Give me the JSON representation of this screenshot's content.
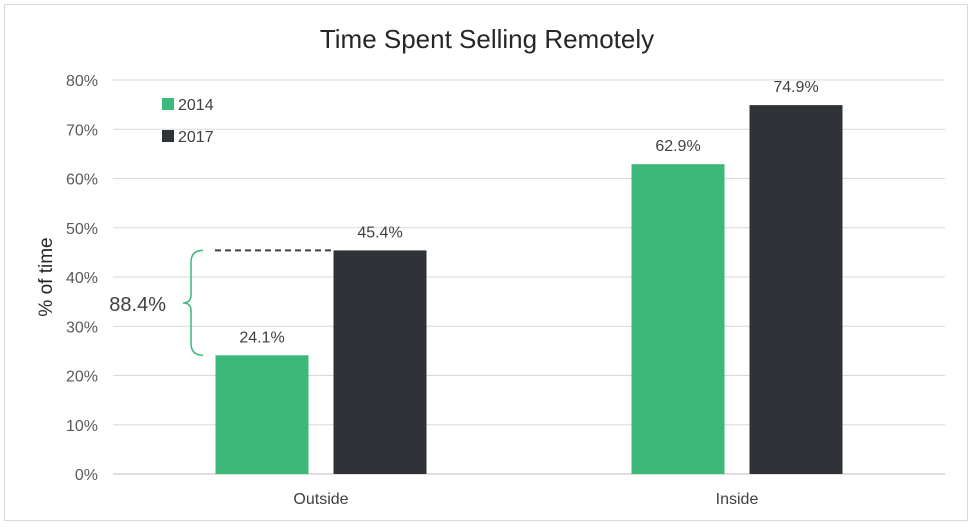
{
  "chart_data": {
    "type": "bar",
    "title": "Time Spent Selling Remotely",
    "xlabel": "",
    "ylabel": "% of time",
    "categories": [
      "Outside",
      "Inside"
    ],
    "series": [
      {
        "name": "2014",
        "values": [
          24.1,
          62.9
        ],
        "labels": [
          "24.1%",
          "62.9%"
        ],
        "color": "#3cb878"
      },
      {
        "name": "2017",
        "values": [
          45.4,
          74.9
        ],
        "labels": [
          "45.4%",
          "74.9%"
        ],
        "color": "#2f3338"
      }
    ],
    "ylim": [
      0,
      80
    ],
    "yticks": [
      0,
      10,
      20,
      30,
      40,
      50,
      60,
      70,
      80
    ],
    "ytick_labels": [
      "0%",
      "10%",
      "20%",
      "30%",
      "40%",
      "50%",
      "60%",
      "70%",
      "80%"
    ],
    "grid": true,
    "legend_position": "top-left",
    "annotation": {
      "text": "88.4%",
      "from_value": 24.1,
      "to_value": 45.4,
      "category": "Outside"
    }
  }
}
